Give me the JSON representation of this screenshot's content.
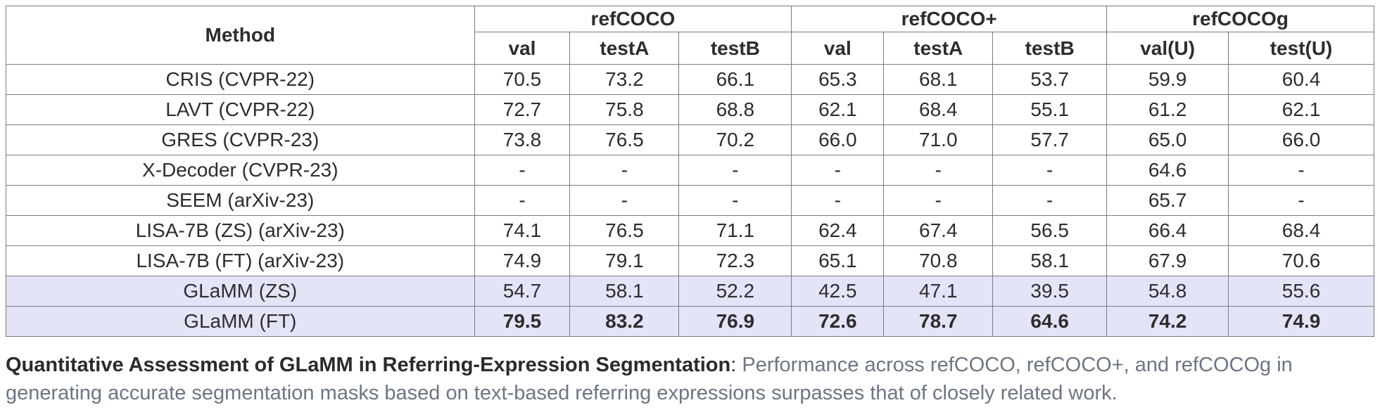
{
  "colors": {
    "highlight_row_bg": "#e4e4f8",
    "table_border": "#7d7d7d",
    "table_text": "#2d2d2d",
    "caption_title": "#2b2b2b",
    "caption_body": "#6b7683"
  },
  "table": {
    "header": {
      "method": "Method",
      "groups": [
        {
          "label": "refCOCO",
          "span": 3
        },
        {
          "label": "refCOCO+",
          "span": 3
        },
        {
          "label": "refCOCOg",
          "span": 2
        }
      ],
      "subcolumns": [
        "val",
        "testA",
        "testB",
        "val",
        "testA",
        "testB",
        "val(U)",
        "test(U)"
      ]
    },
    "rows": [
      {
        "method": "CRIS (CVPR-22)",
        "values": [
          "70.5",
          "73.2",
          "66.1",
          "65.3",
          "68.1",
          "53.7",
          "59.9",
          "60.4"
        ],
        "highlight": false,
        "bold_values": false
      },
      {
        "method": "LAVT (CVPR-22)",
        "values": [
          "72.7",
          "75.8",
          "68.8",
          "62.1",
          "68.4",
          "55.1",
          "61.2",
          "62.1"
        ],
        "highlight": false,
        "bold_values": false
      },
      {
        "method": "GRES (CVPR-23)",
        "values": [
          "73.8",
          "76.5",
          "70.2",
          "66.0",
          "71.0",
          "57.7",
          "65.0",
          "66.0"
        ],
        "highlight": false,
        "bold_values": false
      },
      {
        "method": "X-Decoder (CVPR-23)",
        "values": [
          "-",
          "-",
          "-",
          "-",
          "-",
          "-",
          "64.6",
          "-"
        ],
        "highlight": false,
        "bold_values": false
      },
      {
        "method": "SEEM (arXiv-23)",
        "values": [
          "-",
          "-",
          "-",
          "-",
          "-",
          "-",
          "65.7",
          "-"
        ],
        "highlight": false,
        "bold_values": false
      },
      {
        "method": "LISA-7B (ZS) (arXiv-23)",
        "values": [
          "74.1",
          "76.5",
          "71.1",
          "62.4",
          "67.4",
          "56.5",
          "66.4",
          "68.4"
        ],
        "highlight": false,
        "bold_values": false
      },
      {
        "method": "LISA-7B (FT) (arXiv-23)",
        "values": [
          "74.9",
          "79.1",
          "72.3",
          "65.1",
          "70.8",
          "58.1",
          "67.9",
          "70.6"
        ],
        "highlight": false,
        "bold_values": false
      },
      {
        "method": "GLaMM (ZS)",
        "values": [
          "54.7",
          "58.1",
          "52.2",
          "42.5",
          "47.1",
          "39.5",
          "54.8",
          "55.6"
        ],
        "highlight": true,
        "bold_values": false
      },
      {
        "method": "GLaMM (FT)",
        "values": [
          "79.5",
          "83.2",
          "76.9",
          "72.6",
          "78.7",
          "64.6",
          "74.2",
          "74.9"
        ],
        "highlight": true,
        "bold_values": true
      }
    ],
    "column_widths_pct": [
      34.24,
      6.99,
      7.97,
      8.23,
      6.74,
      7.97,
      8.33,
      8.9,
      10.64
    ]
  },
  "caption": {
    "bold_text": "Quantitative Assessment of GLaMM in Referring-Expression Segmentation",
    "separator": ":",
    "body_text": " Performance across refCOCO, refCOCO+, and refCOCOg in generating accurate segmentation masks based on text-based referring expressions surpasses that of closely related work."
  }
}
